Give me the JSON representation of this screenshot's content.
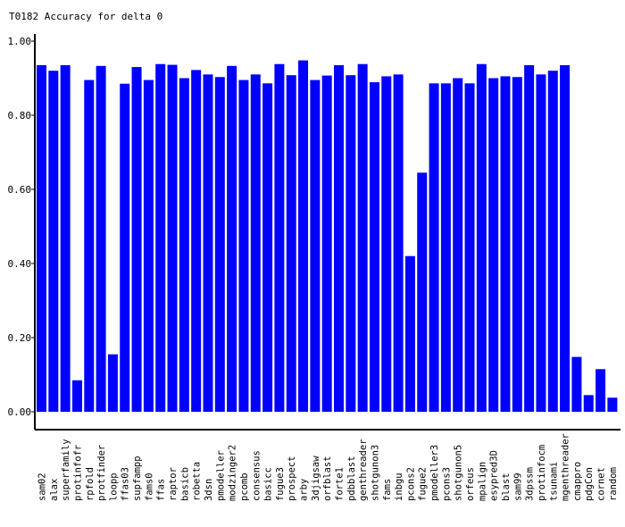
{
  "chart_data": {
    "type": "bar",
    "title": "T0182 Accuracy for delta 0",
    "xlabel": "",
    "ylabel": "",
    "ylim": [
      0,
      1.0
    ],
    "yticks": [
      "0.00",
      "0.20",
      "0.40",
      "0.60",
      "0.80",
      "1.00"
    ],
    "grid": false,
    "bar_color": "#0000ff",
    "categories": [
      "sam02",
      "alax",
      "superfamily",
      "protinfofr",
      "rpfold",
      "protfinder",
      "loopp",
      "ffas03",
      "supfampp",
      "fams0",
      "ffas",
      "raptor",
      "basicb",
      "robetta",
      "3dsn",
      "pmodeller",
      "modzinger2",
      "pcomb",
      "consensus",
      "basicc",
      "fugue3",
      "prospect",
      "arby",
      "3djigsaw",
      "orfblast",
      "forte1",
      "pdbblast",
      "genthreader",
      "shotgunon3",
      "fams",
      "inbgu",
      "pcons2",
      "fugue2",
      "pmodeller3",
      "pcons3",
      "shotgunon5",
      "orfeus",
      "mpalign",
      "esypred3D",
      "blast",
      "sam99",
      "3dpssm",
      "protinfocm",
      "tsunami",
      "mgenthreader",
      "cmappro",
      "pdgCon",
      "cornet",
      "random"
    ],
    "values": [
      0.935,
      0.92,
      0.935,
      0.085,
      0.895,
      0.933,
      0.155,
      0.885,
      0.93,
      0.895,
      0.938,
      0.936,
      0.9,
      0.922,
      0.91,
      0.903,
      0.933,
      0.895,
      0.91,
      0.886,
      0.938,
      0.908,
      0.948,
      0.895,
      0.907,
      0.935,
      0.908,
      0.938,
      0.889,
      0.905,
      0.91,
      0.42,
      0.645,
      0.886,
      0.886,
      0.9,
      0.886,
      0.938,
      0.9,
      0.905,
      0.903,
      0.935,
      0.91,
      0.92,
      0.935,
      0.148,
      0.045,
      0.115,
      0.038
    ]
  }
}
